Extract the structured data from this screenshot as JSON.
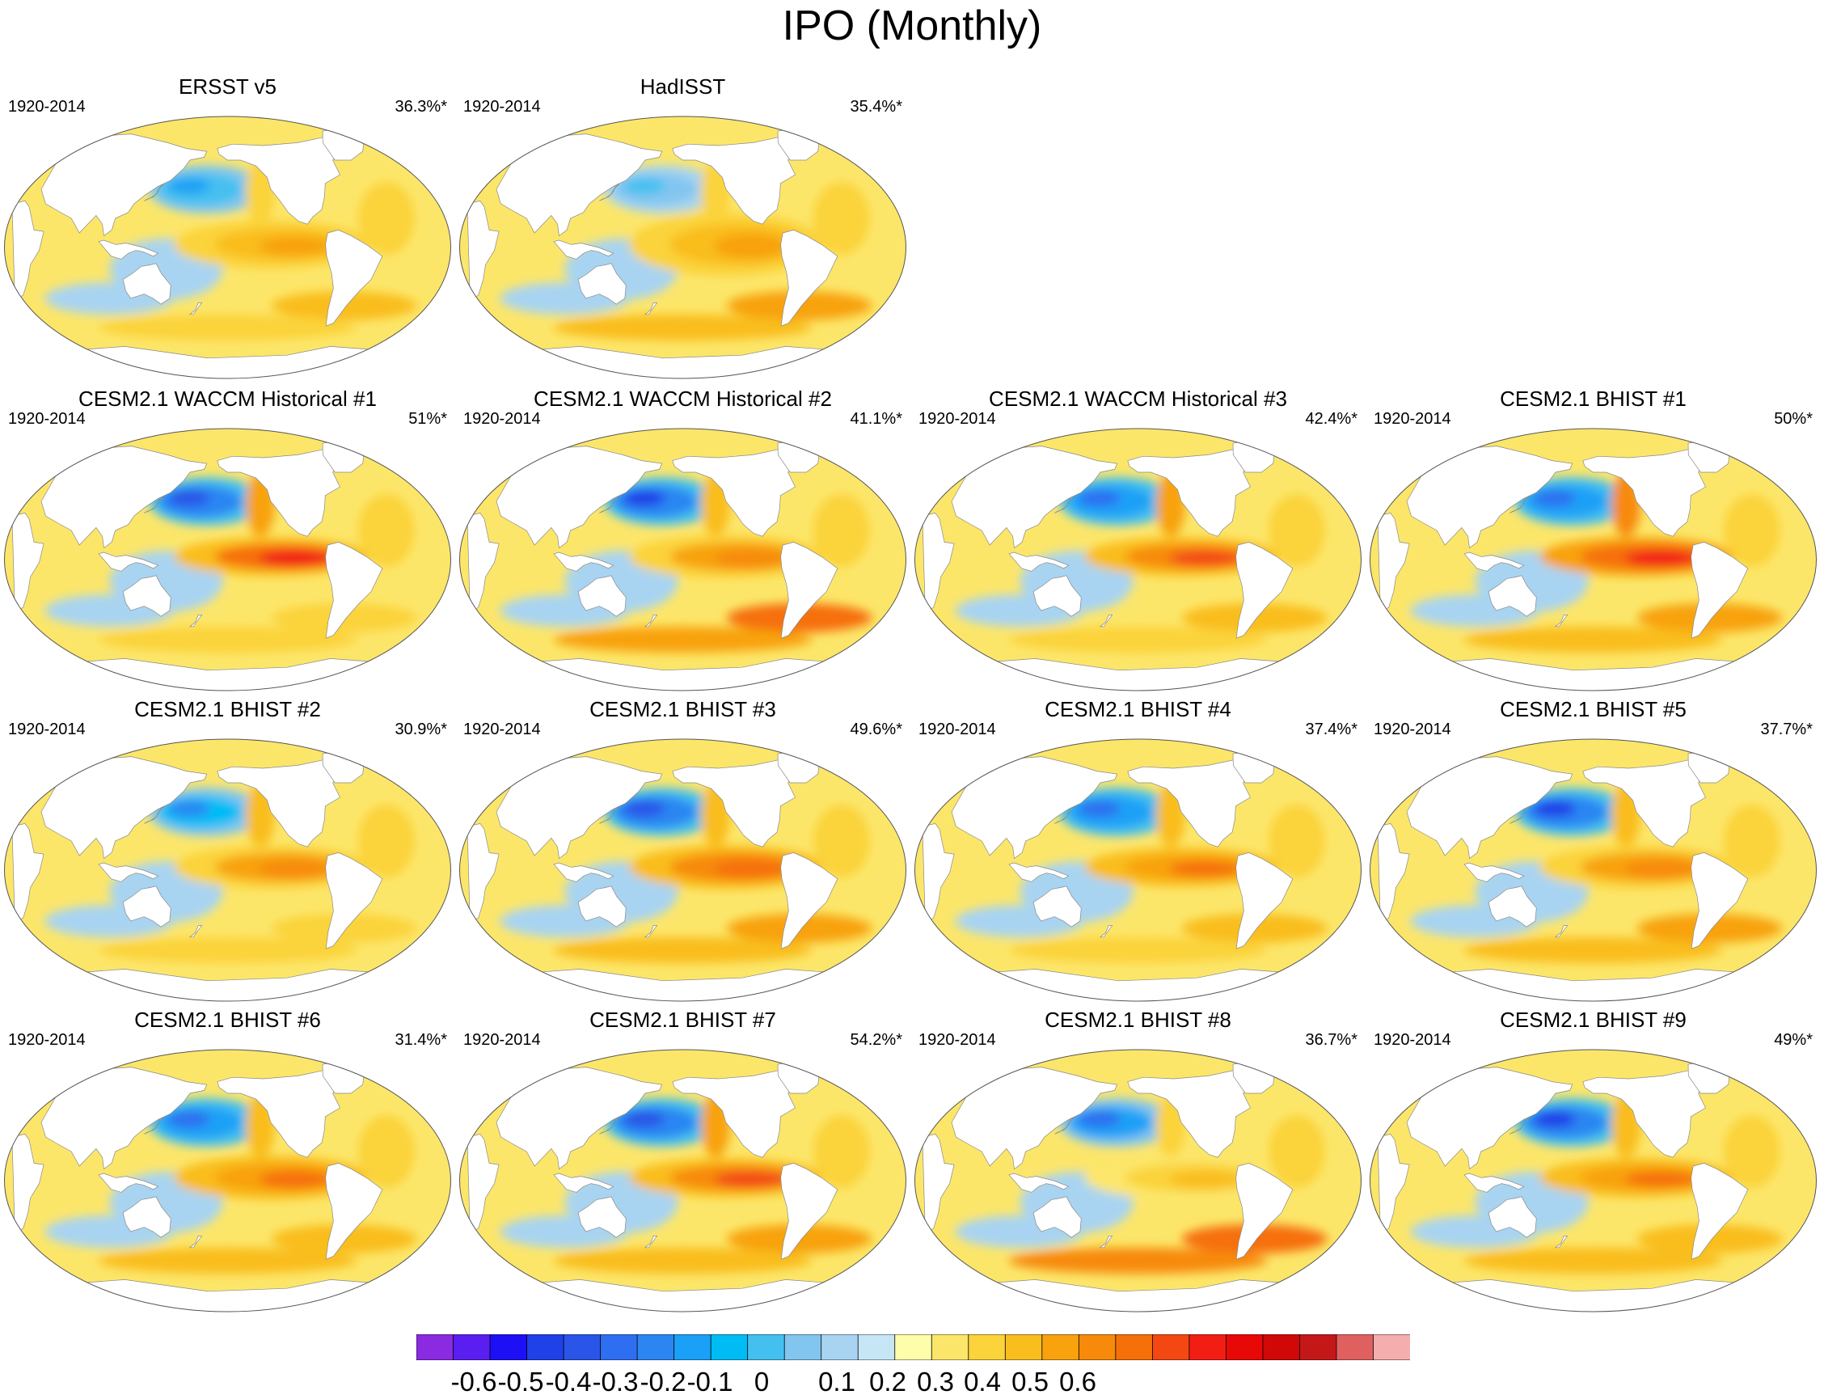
{
  "page": {
    "title": "IPO (Monthly)"
  },
  "chart_data": {
    "type": "heatmap",
    "title": "IPO (Monthly)",
    "description_units": "SST regression onto IPO index",
    "colorbar": {
      "levels": [
        -0.6,
        -0.5,
        -0.4,
        -0.3,
        -0.2,
        -0.1,
        0,
        0.1,
        0.2,
        0.3,
        0.4,
        0.5,
        0.6
      ],
      "tick_labels": [
        "-0.6",
        "-0.5",
        "-0.4",
        "-0.3",
        "-0.2",
        "-0.1",
        "0",
        "0.1",
        "0.2",
        "0.3",
        "0.4",
        "0.5",
        "0.6"
      ],
      "colors": [
        "#8a2be2",
        "#5a1ef0",
        "#1e10f5",
        "#2040e8",
        "#2a55e8",
        "#2e6ef0",
        "#2c86f2",
        "#1aa0f6",
        "#00bcf5",
        "#44c0f0",
        "#82c6f0",
        "#a8d4f2",
        "#c7e6f5",
        "#fdfdaa",
        "#fce66a",
        "#fbd33a",
        "#f9bd1e",
        "#f8a20e",
        "#f78a0a",
        "#f6700a",
        "#f34812",
        "#f21e14",
        "#e80808",
        "#d00808",
        "#c41818",
        "#e06060",
        "#f5aeae"
      ]
    },
    "panels": [
      {
        "title": "ERSST v5",
        "period": "1920-2014",
        "variance": "36.3%*",
        "tropical": 0.22,
        "north_pacific": -0.28,
        "tropical_width": 1.0,
        "south_band": 0.15
      },
      {
        "title": "HadISST",
        "period": "1920-2014",
        "variance": "35.4%*",
        "tropical": 0.2,
        "north_pacific": -0.22,
        "tropical_width": 1.3,
        "south_band": 0.2
      },
      null,
      null,
      {
        "title": "CESM2.1 WACCM Historical #1",
        "period": "1920-2014",
        "variance": "51%*",
        "tropical": 0.38,
        "north_pacific": -0.45,
        "tropical_width": 0.8,
        "south_band": 0.12
      },
      {
        "title": "CESM2.1 WACCM Historical #2",
        "period": "1920-2014",
        "variance": "41.1%*",
        "tropical": 0.24,
        "north_pacific": -0.5,
        "tropical_width": 0.9,
        "south_band": 0.28
      },
      {
        "title": "CESM2.1 WACCM Historical #3",
        "period": "1920-2014",
        "variance": "42.4%*",
        "tropical": 0.33,
        "north_pacific": -0.4,
        "tropical_width": 0.8,
        "south_band": 0.14
      },
      {
        "title": "CESM2.1 BHIST #1",
        "period": "1920-2014",
        "variance": "50%*",
        "tropical": 0.42,
        "north_pacific": -0.42,
        "tropical_width": 0.8,
        "south_band": 0.18
      },
      {
        "title": "CESM2.1 BHIST #2",
        "period": "1920-2014",
        "variance": "30.9%*",
        "tropical": 0.27,
        "north_pacific": -0.36,
        "tropical_width": 0.9,
        "south_band": 0.1
      },
      {
        "title": "CESM2.1 BHIST #3",
        "period": "1920-2014",
        "variance": "49.6%*",
        "tropical": 0.31,
        "north_pacific": -0.45,
        "tropical_width": 0.9,
        "south_band": 0.2
      },
      {
        "title": "CESM2.1 BHIST #4",
        "period": "1920-2014",
        "variance": "37.4%*",
        "tropical": 0.3,
        "north_pacific": -0.4,
        "tropical_width": 0.8,
        "south_band": 0.15
      },
      {
        "title": "CESM2.1 BHIST #5",
        "period": "1920-2014",
        "variance": "37.7%*",
        "tropical": 0.27,
        "north_pacific": -0.5,
        "tropical_width": 0.9,
        "south_band": 0.18
      },
      {
        "title": "CESM2.1 BHIST #6",
        "period": "1920-2014",
        "variance": "31.4%*",
        "tropical": 0.3,
        "north_pacific": -0.42,
        "tropical_width": 0.9,
        "south_band": 0.16
      },
      {
        "title": "CESM2.1 BHIST #7",
        "period": "1920-2014",
        "variance": "54.2%*",
        "tropical": 0.36,
        "north_pacific": -0.44,
        "tropical_width": 0.8,
        "south_band": 0.2
      },
      {
        "title": "CESM2.1 BHIST #8",
        "period": "1920-2014",
        "variance": "36.7%*",
        "tropical": 0.15,
        "north_pacific": -0.38,
        "tropical_width": 0.9,
        "south_band": 0.3
      },
      {
        "title": "CESM2.1 BHIST #9",
        "period": "1920-2014",
        "variance": "49%*",
        "tropical": 0.3,
        "north_pacific": -0.5,
        "tropical_width": 0.8,
        "south_band": 0.16
      }
    ]
  }
}
